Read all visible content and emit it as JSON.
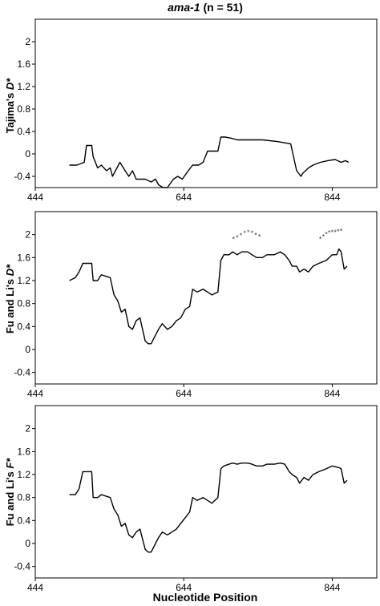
{
  "title_main": "ama-1",
  "title_rest": " (n = 51)",
  "xlabel": "Nucleotide Position",
  "chart_data": [
    {
      "type": "line",
      "ylabel_main": "Tajima's ",
      "ylabel_var": "D*",
      "xlim": [
        444,
        904
      ],
      "ylim": [
        -0.6,
        2.4
      ],
      "xticks": [
        444,
        644,
        844
      ],
      "yticks": [
        -0.4,
        0,
        0.4,
        0.8,
        1.2,
        1.6,
        2
      ],
      "x": [
        490,
        500,
        510,
        513,
        520,
        522,
        528,
        533,
        540,
        545,
        548,
        552,
        558,
        565,
        570,
        575,
        580,
        585,
        592,
        600,
        606,
        610,
        616,
        622,
        630,
        636,
        642,
        650,
        656,
        664,
        670,
        676,
        682,
        690,
        694,
        700,
        708,
        716,
        730,
        750,
        770,
        788,
        796,
        802,
        804,
        808,
        812,
        818,
        828,
        838,
        848,
        856,
        862,
        866
      ],
      "y": [
        -0.2,
        -0.2,
        -0.15,
        0.15,
        0.15,
        -0.05,
        -0.25,
        -0.2,
        -0.3,
        -0.25,
        -0.4,
        -0.3,
        -0.15,
        -0.3,
        -0.4,
        -0.3,
        -0.45,
        -0.45,
        -0.45,
        -0.5,
        -0.45,
        -0.55,
        -0.6,
        -0.6,
        -0.45,
        -0.4,
        -0.45,
        -0.3,
        -0.2,
        -0.2,
        -0.15,
        0.05,
        0.05,
        0.05,
        0.3,
        0.3,
        0.28,
        0.25,
        0.25,
        0.25,
        0.22,
        0.18,
        -0.3,
        -0.4,
        -0.35,
        -0.3,
        -0.25,
        -0.2,
        -0.15,
        -0.12,
        -0.1,
        -0.15,
        -0.12,
        -0.15
      ]
    },
    {
      "type": "line",
      "ylabel_main": "Fu and Li's ",
      "ylabel_var": "D*",
      "xlim": [
        444,
        904
      ],
      "ylim": [
        -0.6,
        2.4
      ],
      "xticks": [
        444,
        644,
        844
      ],
      "yticks": [
        -0.4,
        0,
        0.4,
        0.8,
        1.2,
        1.6,
        2
      ],
      "x": [
        490,
        498,
        503,
        508,
        513,
        520,
        522,
        528,
        533,
        545,
        550,
        555,
        560,
        565,
        570,
        575,
        580,
        585,
        592,
        596,
        600,
        606,
        610,
        615,
        622,
        628,
        634,
        640,
        646,
        652,
        656,
        662,
        670,
        676,
        682,
        690,
        694,
        698,
        705,
        710,
        716,
        722,
        730,
        736,
        742,
        750,
        756,
        766,
        774,
        780,
        786,
        790,
        796,
        800,
        806,
        812,
        818,
        826,
        836,
        844,
        850,
        853,
        856,
        860,
        864
      ],
      "y": [
        1.2,
        1.25,
        1.35,
        1.5,
        1.5,
        1.5,
        1.2,
        1.2,
        1.3,
        1.25,
        0.95,
        0.85,
        0.65,
        0.7,
        0.4,
        0.35,
        0.5,
        0.55,
        0.15,
        0.1,
        0.1,
        0.25,
        0.35,
        0.45,
        0.35,
        0.4,
        0.5,
        0.55,
        0.7,
        0.75,
        1.05,
        1.0,
        1.05,
        1.0,
        0.95,
        1.0,
        1.55,
        1.65,
        1.65,
        1.7,
        1.65,
        1.7,
        1.7,
        1.65,
        1.6,
        1.6,
        1.65,
        1.65,
        1.7,
        1.65,
        1.55,
        1.45,
        1.45,
        1.35,
        1.4,
        1.35,
        1.45,
        1.5,
        1.55,
        1.65,
        1.65,
        1.75,
        1.7,
        1.4,
        1.45
      ],
      "markers": [
        {
          "x": [
            711,
            716,
            721,
            726,
            731,
            736,
            741,
            746
          ],
          "y": [
            1.92,
            1.95,
            1.98,
            2.02,
            2.04,
            2.02,
            1.99,
            1.96
          ]
        },
        {
          "x": [
            828,
            832,
            836,
            840,
            844,
            848,
            852,
            856
          ],
          "y": [
            1.92,
            1.96,
            2.0,
            2.03,
            2.04,
            2.04,
            2.05,
            2.06
          ]
        }
      ]
    },
    {
      "type": "line",
      "ylabel_main": "Fu and Li's ",
      "ylabel_var": "F*",
      "xlim": [
        444,
        904
      ],
      "ylim": [
        -0.6,
        2.4
      ],
      "xticks": [
        444,
        644,
        844
      ],
      "yticks": [
        -0.4,
        0,
        0.4,
        0.8,
        1.2,
        1.6,
        2
      ],
      "x": [
        490,
        498,
        503,
        508,
        513,
        520,
        522,
        528,
        533,
        545,
        550,
        555,
        560,
        565,
        570,
        575,
        580,
        585,
        592,
        596,
        600,
        606,
        610,
        615,
        622,
        628,
        634,
        640,
        646,
        652,
        656,
        662,
        670,
        676,
        682,
        690,
        694,
        698,
        705,
        710,
        716,
        722,
        730,
        736,
        742,
        750,
        756,
        766,
        774,
        780,
        786,
        790,
        796,
        800,
        806,
        812,
        818,
        826,
        836,
        844,
        850,
        853,
        856,
        860,
        864
      ],
      "y": [
        0.85,
        0.85,
        0.95,
        1.25,
        1.25,
        1.25,
        0.8,
        0.8,
        0.85,
        0.8,
        0.6,
        0.5,
        0.3,
        0.35,
        0.15,
        0.1,
        0.2,
        0.25,
        -0.1,
        -0.15,
        -0.15,
        0.0,
        0.1,
        0.2,
        0.15,
        0.2,
        0.25,
        0.35,
        0.45,
        0.55,
        0.8,
        0.75,
        0.8,
        0.75,
        0.7,
        0.8,
        1.3,
        1.35,
        1.38,
        1.4,
        1.38,
        1.4,
        1.4,
        1.38,
        1.35,
        1.35,
        1.38,
        1.38,
        1.4,
        1.38,
        1.25,
        1.2,
        1.15,
        1.05,
        1.15,
        1.1,
        1.2,
        1.25,
        1.3,
        1.35,
        1.33,
        1.32,
        1.3,
        1.05,
        1.1
      ]
    }
  ]
}
